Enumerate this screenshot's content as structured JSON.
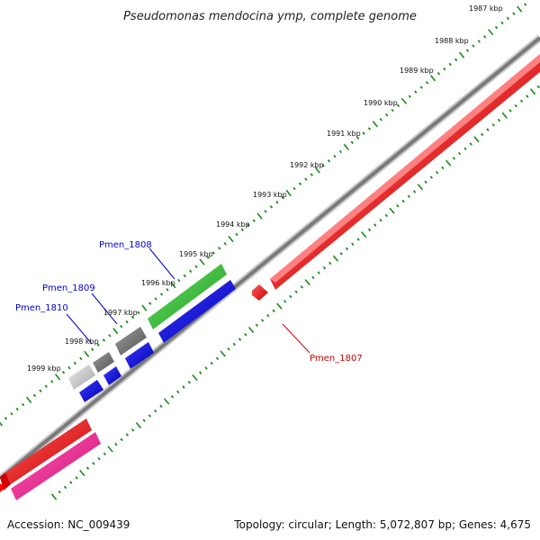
{
  "title": "Pseudomonas mendocina ymp, complete genome",
  "footer": {
    "accession": "Accession: NC_009439",
    "topology": "Topology: circular; Length: 5,072,807 bp; Genes: 4,675"
  },
  "scale_labels": [
    "1987 kbp",
    "1988 kbp",
    "1989 kbp",
    "1990 kbp",
    "1991 kbp",
    "1992 kbp",
    "1993 kbp",
    "1994 kbp",
    "1995 kbp",
    "1996 kbp",
    "1997 kbp",
    "1998 kbp",
    "1999 kbp"
  ],
  "gene_labels": [
    {
      "text": "Pmen_1808",
      "color": "#0000cc"
    },
    {
      "text": "Pmen_1809",
      "color": "#0000cc"
    },
    {
      "text": "Pmen_1810",
      "color": "#0000cc"
    },
    {
      "text": "Pmen_1807",
      "color": "#cc0000"
    }
  ],
  "colors": {
    "forward_cds": "#ff0000",
    "reverse_cds": "#0000ff",
    "rna": "#33cc33",
    "pseudo_light": "#c8c8c8",
    "pseudo_dark": "#777777",
    "magenta": "#ff1493",
    "backbone": "#888888",
    "ticks": "#1a8a1a"
  }
}
